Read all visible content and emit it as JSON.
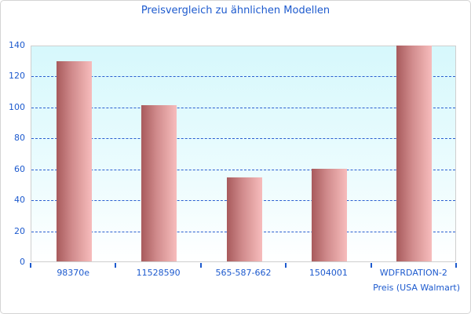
{
  "chart_data": {
    "type": "bar",
    "title": "Preisvergleich zu ähnlichen Modellen",
    "categories": [
      "98370e",
      "11528590",
      "565-587-662",
      "1504001",
      "WDFRDATION-2"
    ],
    "values": [
      129.5,
      101,
      54.5,
      60,
      139.5
    ],
    "xlabel": "Preis (USA Walmart)",
    "ylabel": "",
    "ylim": [
      0,
      140
    ],
    "yticks": [
      0,
      20,
      40,
      60,
      80,
      100,
      120,
      140
    ],
    "grid": "horizontal-dashed",
    "legend": "none",
    "series_name": "Preis"
  },
  "colors": {
    "title_text": "#1d5ace",
    "axis_text": "#1d5ace",
    "gridline": "#2a5ed0",
    "tick": "#1d5ace",
    "bar_grad_left": "#a85a5c",
    "bar_grad_mid": "#d18c8d",
    "bar_grad_right": "#f7bcbc",
    "plot_bg_top": "#d6f8fc",
    "plot_bg_bottom": "#ffffff",
    "plot_border": "#cfcfcf",
    "canvas_border": "#d4d4d4"
  }
}
